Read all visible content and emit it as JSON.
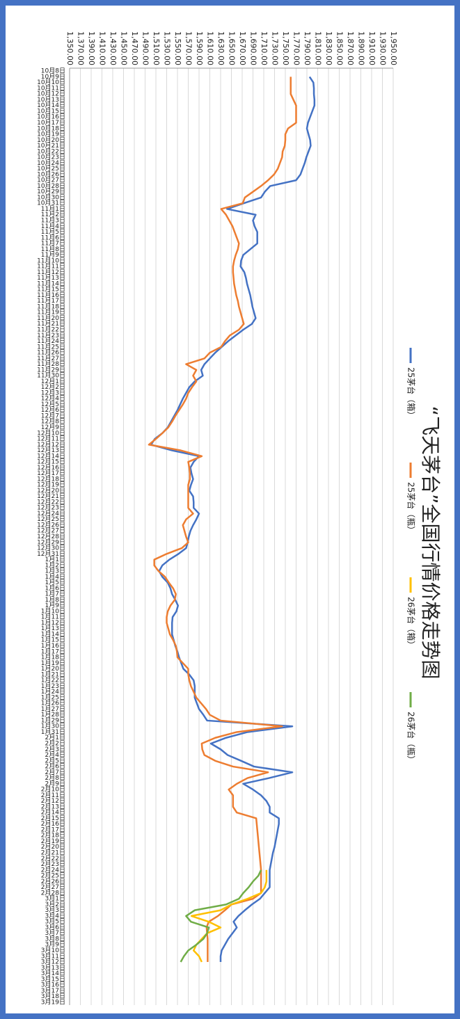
{
  "chart_data": {
    "type": "line",
    "title": "“飞天茅台”全国行情价格走势图",
    "legend": "top",
    "grid": true,
    "categories": [
      "10月8日",
      "10月9日",
      "10月10日",
      "10月11日",
      "10月12日",
      "10月13日",
      "10月14日",
      "10月15日",
      "10月16日",
      "10月17日",
      "10月18日",
      "10月19日",
      "10月20日",
      "10月21日",
      "10月22日",
      "10月23日",
      "10月24日",
      "10月25日",
      "10月26日",
      "10月27日",
      "10月28日",
      "10月29日",
      "10月30日",
      "10月31日",
      "11月1日",
      "11月2日",
      "11月3日",
      "11月4日",
      "11月5日",
      "11月6日",
      "11月7日",
      "11月8日",
      "11月9日",
      "11月10日",
      "11月11日",
      "11月12日",
      "11月13日",
      "11月14日",
      "11月15日",
      "11月16日",
      "11月17日",
      "11月18日",
      "11月19日",
      "11月20日",
      "11月21日",
      "11月22日",
      "11月23日",
      "11月24日",
      "11月25日",
      "11月26日",
      "11月27日",
      "11月28日",
      "11月29日",
      "11月30日",
      "12月1日",
      "12月2日",
      "12月3日",
      "12月4日",
      "12月5日",
      "12月6日",
      "12月7日",
      "12月8日",
      "12月9日",
      "12月10日",
      "12月11日",
      "12月12日",
      "12月13日",
      "12月14日",
      "12月15日",
      "12月16日",
      "12月17日",
      "12月18日",
      "12月19日",
      "12月20日",
      "12月21日",
      "12月22日",
      "12月23日",
      "12月24日",
      "12月25日",
      "12月26日",
      "12月27日",
      "12月28日",
      "12月29日",
      "12月30日",
      "12月31日",
      "1月1日",
      "1月2日",
      "1月3日",
      "1月4日",
      "1月5日",
      "1月6日",
      "1月7日",
      "1月8日",
      "1月9日",
      "1月10日",
      "1月11日",
      "1月12日",
      "1月13日",
      "1月14日",
      "1月15日",
      "1月16日",
      "1月17日",
      "1月18日",
      "1月19日",
      "1月20日",
      "1月21日",
      "1月22日",
      "1月23日",
      "1月24日",
      "1月25日",
      "1月26日",
      "1月27日",
      "1月28日",
      "1月29日",
      "1月30日",
      "1月31日",
      "2月1日",
      "2月2日",
      "2月3日",
      "2月4日",
      "2月5日",
      "2月6日",
      "2月7日",
      "2月8日",
      "2月9日",
      "2月10日",
      "2月11日",
      "2月12日",
      "2月13日",
      "2月14日",
      "2月15日",
      "2月16日",
      "2月17日",
      "2月18日",
      "2月19日",
      "2月20日",
      "2月21日",
      "2月22日",
      "2月23日",
      "2月24日",
      "2月25日",
      "2月26日",
      "2月27日",
      "2月28日",
      "3月1日",
      "3月2日",
      "3月3日",
      "3月4日",
      "3月5日",
      "3月6日",
      "3月7日",
      "3月8日",
      "3月9日",
      "3月10日",
      "3月11日",
      "3月12日",
      "3月13日",
      "3月14日",
      "3月15日",
      "3月16日",
      "3月17日",
      "3月18日",
      "3月19日"
    ],
    "ylim": [
      1350,
      1950
    ],
    "yticks": [
      {
        "value": 1350,
        "label": "1,350.00"
      },
      {
        "value": 1370,
        "label": "1,370.00"
      },
      {
        "value": 1390,
        "label": "1,390.00"
      },
      {
        "value": 1410,
        "label": "1,410.00"
      },
      {
        "value": 1430,
        "label": "1,430.00"
      },
      {
        "value": 1450,
        "label": "1,450.00"
      },
      {
        "value": 1470,
        "label": "1,470.00"
      },
      {
        "value": 1490,
        "label": "1,490.00"
      },
      {
        "value": 1510,
        "label": "1,510.00"
      },
      {
        "value": 1530,
        "label": "1,530.00"
      },
      {
        "value": 1550,
        "label": "1,550.00"
      },
      {
        "value": 1570,
        "label": "1,570.00"
      },
      {
        "value": 1590,
        "label": "1,590.00"
      },
      {
        "value": 1610,
        "label": "1,610.00"
      },
      {
        "value": 1630,
        "label": "1,630.00"
      },
      {
        "value": 1650,
        "label": "1,650.00"
      },
      {
        "value": 1670,
        "label": "1,670.00"
      },
      {
        "value": 1690,
        "label": "1,690.00"
      },
      {
        "value": 1710,
        "label": "1,710.00"
      },
      {
        "value": 1730,
        "label": "1,730.00"
      },
      {
        "value": 1750,
        "label": "1,750.00"
      },
      {
        "value": 1770,
        "label": "1,770.00"
      },
      {
        "value": 1790,
        "label": "1,790.00"
      },
      {
        "value": 1810,
        "label": "1,810.00"
      },
      {
        "value": 1830,
        "label": "1,830.00"
      },
      {
        "value": 1850,
        "label": "1,850.00"
      },
      {
        "value": 1870,
        "label": "1,870.00"
      },
      {
        "value": 1890,
        "label": "1,890.00"
      },
      {
        "value": 1910,
        "label": "1,910.00"
      },
      {
        "value": 1930,
        "label": "1,930.00"
      },
      {
        "value": 1950,
        "label": "1,950.00"
      }
    ],
    "series": [
      {
        "name": "25茅台（箱）",
        "color": "#4472c4",
        "values": [
          null,
          1795,
          1802,
          1803,
          1803,
          1804,
          1804,
          1800,
          1796,
          1792,
          1790,
          1793,
          1796,
          1797,
          1793,
          1789,
          1786,
          1782,
          1778,
          1770,
          1722,
          1712,
          1705,
          1673,
          1642,
          1695,
          1690,
          1693,
          1698,
          1698,
          1698,
          1685,
          1672,
          1668,
          1667,
          1674,
          1677,
          1679,
          1682,
          1685,
          1687,
          1689,
          1692,
          1695,
          1688,
          1672,
          1658,
          1644,
          1632,
          1620,
          1610,
          1600,
          1594,
          1597,
          1582,
          1572,
          1566,
          1560,
          1555,
          1550,
          1544,
          1538,
          1532,
          1522,
          1508,
          1501,
          1540,
          1590,
          1580,
          1574,
          1576,
          1579,
          1575,
          1572,
          1579,
          1580,
          1580,
          1590,
          1585,
          1579,
          1574,
          1571,
          1569,
          1566,
          1552,
          1535,
          1522,
          1516,
          1522,
          1532,
          1537,
          1540,
          1546,
          1551,
          1548,
          1541,
          1540,
          1540,
          1540,
          1543,
          1546,
          1550,
          1553,
          1557,
          1561,
          1572,
          1580,
          1582,
          1582,
          1582,
          1586,
          1590,
          1598,
          1605,
          1763,
          1680,
          1640,
          1612,
          1630,
          1643,
          1668,
          1692,
          1763,
          1720,
          1672,
          1690,
          1705,
          1715,
          1721,
          1721,
          1738,
          1738,
          1736,
          1734,
          1732,
          1730,
          1727,
          1725,
          1723,
          1721,
          1721,
          1721,
          1721,
          1712,
          1703,
          1688,
          1675,
          1663,
          1654,
          1660,
          1652,
          1644,
          1638,
          1632,
          1630,
          1630,
          null,
          null,
          null,
          null,
          null,
          null,
          null
        ]
      },
      {
        "name": "25茅台（瓶）",
        "color": "#ed7d31",
        "values": [
          null,
          1760,
          1760,
          1760,
          1760,
          1765,
          1770,
          1770,
          1770,
          1770,
          1755,
          1750,
          1750,
          1749,
          1745,
          1744,
          1740,
          1736,
          1729,
          1718,
          1705,
          1690,
          1675,
          1671,
          1631,
          1640,
          1646,
          1652,
          1656,
          1660,
          1664,
          1662,
          1658,
          1655,
          1653,
          1653,
          1654,
          1655,
          1657,
          1659,
          1662,
          1664,
          1667,
          1670,
          1673,
          1664,
          1647,
          1638,
          1631,
          1610,
          1600,
          1566,
          1585,
          1579,
          1585,
          1577,
          1570,
          1566,
          1560,
          1553,
          1546,
          1540,
          1533,
          1522,
          1510,
          1497,
          1556,
          1595,
          1570,
          1572,
          1573,
          1573,
          1570,
          1570,
          1570,
          1570,
          1570,
          1579,
          1566,
          1560,
          1563,
          1566,
          1570,
          1558,
          1530,
          1507,
          1507,
          1515,
          1527,
          1534,
          1542,
          1547,
          1545,
          1537,
          1532,
          1530,
          1530,
          1533,
          1536,
          1542,
          1547,
          1549,
          1550,
          1560,
          1570,
          1570,
          1572,
          1575,
          1580,
          1585,
          1594,
          1603,
          1610,
          1630,
          1744,
          1660,
          1620,
          1595,
          1596,
          1600,
          1620,
          1653,
          1718,
          1680,
          1660,
          1645,
          1653,
          1653,
          1653,
          1660,
          1696,
          1697,
          1698,
          1699,
          1700,
          1701,
          1702,
          1703,
          1704,
          1705,
          1705,
          1705,
          1705,
          1705,
          1690,
          1650,
          1638,
          1625,
          1608,
          1604,
          1605,
          1606,
          1606,
          1606,
          1606,
          1606,
          null,
          null,
          null,
          null,
          null,
          null,
          null
        ]
      },
      {
        "name": "26茅台（箱）",
        "color": "#ffc000",
        "values": [
          null,
          null,
          null,
          null,
          null,
          null,
          null,
          null,
          null,
          null,
          null,
          null,
          null,
          null,
          null,
          null,
          null,
          null,
          null,
          null,
          null,
          null,
          null,
          null,
          null,
          null,
          null,
          null,
          null,
          null,
          null,
          null,
          null,
          null,
          null,
          null,
          null,
          null,
          null,
          null,
          null,
          null,
          null,
          null,
          null,
          null,
          null,
          null,
          null,
          null,
          null,
          null,
          null,
          null,
          null,
          null,
          null,
          null,
          null,
          null,
          null,
          null,
          null,
          null,
          null,
          null,
          null,
          null,
          null,
          null,
          null,
          null,
          null,
          null,
          null,
          null,
          null,
          null,
          null,
          null,
          null,
          null,
          null,
          null,
          null,
          null,
          null,
          null,
          null,
          null,
          null,
          null,
          null,
          null,
          null,
          null,
          null,
          null,
          null,
          null,
          null,
          null,
          null,
          null,
          null,
          null,
          null,
          null,
          null,
          null,
          null,
          null,
          null,
          null,
          null,
          null,
          null,
          null,
          null,
          null,
          null,
          null,
          null,
          null,
          null,
          null,
          null,
          null,
          null,
          null,
          null,
          null,
          null,
          null,
          null,
          null,
          null,
          null,
          null,
          1715,
          1715,
          1715,
          1712,
          1705,
          1680,
          1650,
          1630,
          1576,
          1608,
          1630,
          1605,
          1595,
          1585,
          1580,
          1590,
          1595,
          null,
          null,
          null,
          null,
          null,
          null,
          null
        ]
      },
      {
        "name": "26茅台（瓶）",
        "color": "#70ad47",
        "values": [
          null,
          null,
          null,
          null,
          null,
          null,
          null,
          null,
          null,
          null,
          null,
          null,
          null,
          null,
          null,
          null,
          null,
          null,
          null,
          null,
          null,
          null,
          null,
          null,
          null,
          null,
          null,
          null,
          null,
          null,
          null,
          null,
          null,
          null,
          null,
          null,
          null,
          null,
          null,
          null,
          null,
          null,
          null,
          null,
          null,
          null,
          null,
          null,
          null,
          null,
          null,
          null,
          null,
          null,
          null,
          null,
          null,
          null,
          null,
          null,
          null,
          null,
          null,
          null,
          null,
          null,
          null,
          null,
          null,
          null,
          null,
          null,
          null,
          null,
          null,
          null,
          null,
          null,
          null,
          null,
          null,
          null,
          null,
          null,
          null,
          null,
          null,
          null,
          null,
          null,
          null,
          null,
          null,
          null,
          null,
          null,
          null,
          null,
          null,
          null,
          null,
          null,
          null,
          null,
          null,
          null,
          null,
          null,
          null,
          null,
          null,
          null,
          null,
          null,
          null,
          null,
          null,
          null,
          null,
          null,
          null,
          null,
          null,
          null,
          null,
          null,
          null,
          null,
          null,
          null,
          null,
          null,
          null,
          null,
          null,
          null,
          null,
          null,
          null,
          1705,
          1700,
          1690,
          1682,
          1672,
          1664,
          1640,
          1582,
          1566,
          1575,
          1608,
          1605,
          1598,
          1585,
          1570,
          1562,
          1556,
          null,
          null,
          null,
          null,
          null,
          null,
          null
        ]
      }
    ]
  }
}
